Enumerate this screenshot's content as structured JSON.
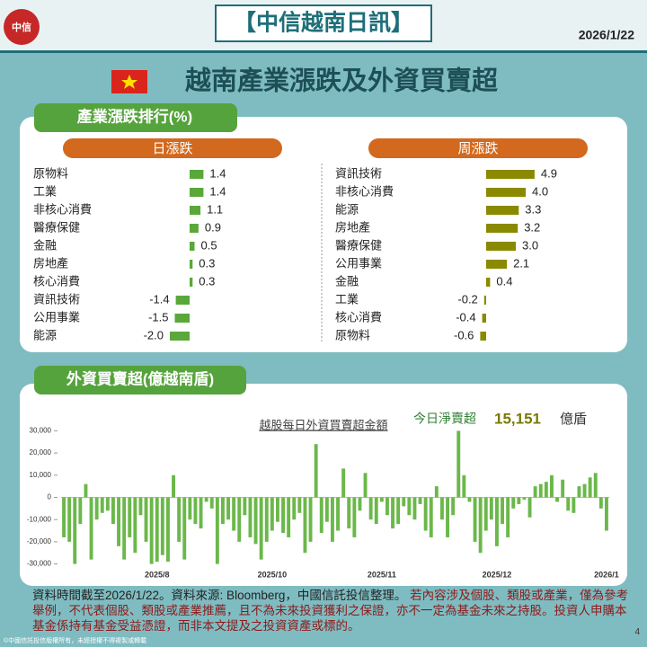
{
  "header": {
    "logo": "中信",
    "title": "【中信越南日訊】",
    "date": "2026/1/22"
  },
  "page_title": "越南產業漲跌及外資買賣超",
  "section1": "產業漲跌排行(%)",
  "section2": "外資買賣超(億越南盾)",
  "chart_data": [
    {
      "type": "hbar",
      "title": "日漲跌",
      "color": "#5aa83a",
      "categories": [
        "原物料",
        "工業",
        "非核心消費",
        "醫療保健",
        "金融",
        "房地產",
        "核心消費",
        "資訊技術",
        "公用事業",
        "能源"
      ],
      "values": [
        1.4,
        1.4,
        1.1,
        0.9,
        0.5,
        0.3,
        0.3,
        -1.4,
        -1.5,
        -2.0
      ],
      "value_labels": [
        "1.4",
        "1.4",
        "1.1",
        "0.9",
        "0.5",
        "0.3",
        "0.3",
        "-1.4",
        "-1.5",
        "-2.0"
      ]
    },
    {
      "type": "hbar",
      "title": "周漲跌",
      "color": "#8a8a00",
      "categories": [
        "資訊技術",
        "非核心消費",
        "能源",
        "房地產",
        "醫療保健",
        "公用事業",
        "金融",
        "工業",
        "核心消費",
        "原物料"
      ],
      "values": [
        4.9,
        4.0,
        3.3,
        3.2,
        3.0,
        2.1,
        0.4,
        -0.2,
        -0.4,
        -0.6
      ],
      "value_labels": [
        "4.9",
        "4.0",
        "3.3",
        "3.2",
        "3.0",
        "2.1",
        "0.4",
        "-0.2",
        "-0.4",
        "-0.6"
      ]
    },
    {
      "type": "bar",
      "title": "越股每日外資買賣超金額",
      "color": "#6bb84a",
      "annotation": {
        "label": "今日淨賣超",
        "value": "15,151",
        "unit": "億盾"
      },
      "ylim": [
        -33000,
        33000
      ],
      "yticks": [
        {
          "value": 30000,
          "label": "30,000"
        },
        {
          "value": 20000,
          "label": "20,000"
        },
        {
          "value": 10000,
          "label": "10,000"
        },
        0,
        {
          "value": -10000,
          "label": "-10,000"
        },
        {
          "value": -20000,
          "label": "-20,000"
        },
        {
          "value": -30000,
          "label": "-30,000"
        }
      ],
      "categories": [
        null,
        null,
        null,
        null,
        null,
        null,
        null,
        null,
        null,
        null,
        null,
        null,
        null,
        null,
        null,
        null,
        null,
        "2025/8",
        null,
        null,
        null,
        null,
        null,
        null,
        null,
        null,
        null,
        null,
        null,
        null,
        null,
        null,
        null,
        null,
        null,
        null,
        null,
        null,
        "2025/10",
        null,
        null,
        null,
        null,
        null,
        null,
        null,
        null,
        null,
        null,
        null,
        null,
        null,
        null,
        null,
        null,
        null,
        null,
        null,
        "2025/11",
        null,
        null,
        null,
        null,
        null,
        null,
        null,
        null,
        null,
        null,
        null,
        null,
        null,
        null,
        null,
        null,
        null,
        null,
        null,
        null,
        "2025/12",
        null,
        null,
        null,
        null,
        null,
        null,
        null,
        null,
        null,
        null,
        null,
        null,
        null,
        null,
        null,
        null,
        null,
        null,
        null,
        "2026/1"
      ],
      "values": [
        -18000,
        -20000,
        -30000,
        -12000,
        6000,
        -28000,
        -10000,
        -7000,
        -6000,
        -12000,
        -22000,
        -28000,
        -18000,
        -25000,
        -8000,
        -20000,
        -30000,
        -29000,
        -26000,
        -29000,
        10000,
        -20000,
        -28000,
        -10000,
        -12000,
        -14000,
        -2000,
        -5000,
        -30000,
        -12000,
        -10000,
        -15000,
        -20000,
        -8000,
        -18000,
        -21000,
        -28000,
        -20000,
        -15000,
        -11000,
        -16000,
        -18000,
        -10000,
        -7000,
        -25000,
        -20000,
        24000,
        -16000,
        -11000,
        -20000,
        -15000,
        13000,
        -14000,
        -18000,
        -6000,
        11000,
        -10000,
        -12000,
        -2000,
        -8000,
        -14000,
        -12000,
        -4000,
        -8000,
        -10000,
        -3000,
        -15000,
        -18000,
        5000,
        -10000,
        -18000,
        -8000,
        30000,
        10000,
        -2000,
        -20000,
        -25000,
        -15000,
        -10000,
        -22000,
        -12000,
        -18000,
        -5000,
        -3000,
        -1000,
        -9000,
        5000,
        6000,
        7000,
        10000,
        -2000,
        8000,
        -6000,
        -7000,
        5000,
        6000,
        9000,
        11000,
        -5000,
        -15000
      ]
    }
  ],
  "footer": {
    "source": "資料時間截至2026/1/22。資料來源: Bloomberg，中國信託投信整理。",
    "disclaimer": "若內容涉及個股、類股或產業，僅為參考舉例，不代表個股、類股或產業推薦，且不為未來投資獲利之保證，亦不一定為基金未來之持股。投資人申購本基金係持有基金受益憑證，而非本文提及之投資資產或標的。",
    "copyright": "©中國信託投信版權所有，未經授權不得複製或轉載",
    "page": "4"
  }
}
